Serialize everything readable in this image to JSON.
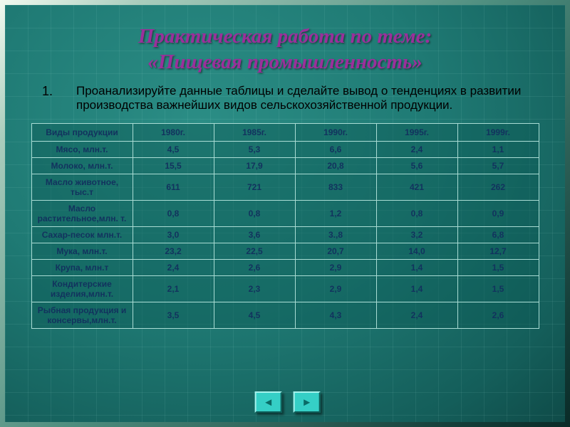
{
  "slide": {
    "title_line1": "Практическая работа по теме:",
    "title_line2": "«Пищевая промышленность»",
    "list_number": "1.",
    "instruction": "Проанализируйте данные таблицы и сделайте вывод о тенденциях в развитии производства важнейших видов сельскохозяйственной продукции."
  },
  "table": {
    "headers": [
      "Виды продукции",
      "1980г.",
      "1985г.",
      "1990г.",
      "1995г.",
      "1999г."
    ],
    "rows": [
      [
        "Мясо, млн.т.",
        "4,5",
        "5,3",
        "6,6",
        "2,4",
        "1,1"
      ],
      [
        "Молоко, млн.т.",
        "15,5",
        "17,9",
        "20,8",
        "5,6",
        "5,7"
      ],
      [
        "Масло животное, тыс.т",
        "611",
        "721",
        "833",
        "421",
        "262"
      ],
      [
        "Масло растительное,млн. т.",
        "0,8",
        "0,8",
        "1,2",
        "0,8",
        "0,9"
      ],
      [
        "Сахар-песок млн.т.",
        "3,0",
        "3,6",
        "3.,8",
        "3,2",
        "6,8"
      ],
      [
        "Мука, млн.т.",
        "23,2",
        "22,5",
        "20,7",
        "14,0",
        "12,7"
      ],
      [
        "Крупа, млн.т",
        "2,4",
        "2,6",
        "2,9",
        "1,4",
        "1,5"
      ],
      [
        "Кондитерские изделия,млн.т.",
        "2,1",
        "2,3",
        "2,9",
        "1,4",
        "1,5"
      ],
      [
        "Рыбная продукция и консервы,млн.т.",
        "3,5",
        "4,5",
        "4,3",
        "2,4",
        "2,6"
      ]
    ]
  },
  "navigation": {
    "back_icon": "◄",
    "forward_icon": "►"
  },
  "colors": {
    "title_text": "#9b2f9b",
    "body_text": "#000000",
    "table_text": "#12325e",
    "table_border": "#a9dcd4",
    "table_cell_bg": "#1d6f6b",
    "slide_bg": "#1f7a74",
    "button_bg": "#35cfc6",
    "button_arrow": "#0a6b66"
  }
}
